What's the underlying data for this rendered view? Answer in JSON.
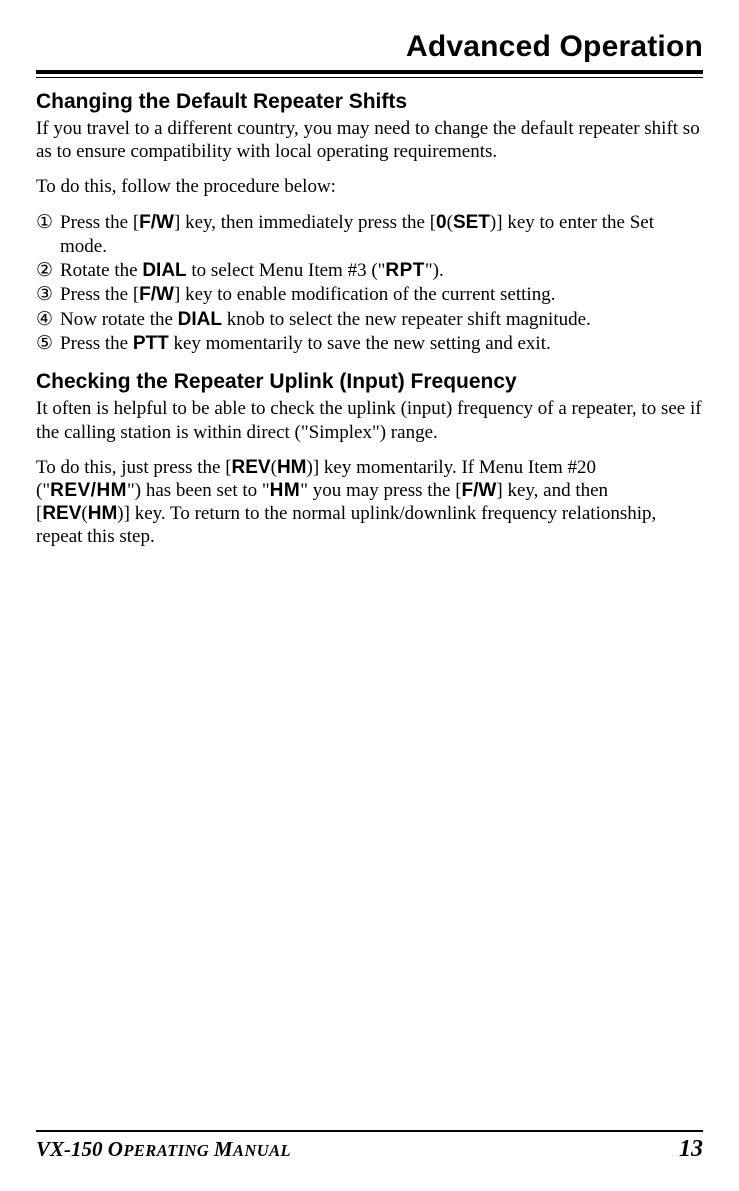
{
  "page_title": "Advanced Operation",
  "section1": {
    "heading": "Changing the Default Repeater Shifts",
    "intro": "If you travel to a different country, you may need to change the default repeater shift so as to ensure compatibility with local operating requirements.",
    "lead": "To do this, follow the procedure below:",
    "steps": {
      "n1": "①",
      "n2": "②",
      "n3": "③",
      "n4": "④",
      "n5": "⑤",
      "s1a": " Press the ",
      "s1_key1o": "[",
      "s1_key1": "F/W",
      "s1_key1c": "]",
      "s1b": " key, then immediately press the ",
      "s1_key2o": "[",
      "s1_key2a": "0",
      "s1_key2p": "(",
      "s1_key2b": "SET",
      "s1_key2q": ")",
      "s1_key2c": "]",
      "s1c": " key to enter the Set mode.",
      "s2a": " Rotate the ",
      "s2_dial": "DIAL",
      "s2b": " to select Menu Item #3 (\"",
      "s2_rpt": "RPT",
      "s2c": "\").",
      "s3a": " Press the ",
      "s3_keyo": "[",
      "s3_key": "F/W",
      "s3_keyc": "]",
      "s3b": " key to enable modification of the current setting.",
      "s4a": " Now rotate the ",
      "s4_dial": "DIAL",
      "s4b": " knob to select the new repeater shift magnitude.",
      "s5a": " Press the ",
      "s5_ptt": "PTT",
      "s5b": " key momentarily to save the new setting and exit."
    }
  },
  "section2": {
    "heading": "Checking the Repeater Uplink (Input) Frequency",
    "intro": "It often is helpful to be able to check the uplink (input) frequency of a repeater, to see if the calling station is within direct (\"Simplex\") range.",
    "p2": {
      "a": "To do this, just press the ",
      "k1o": "[",
      "k1a": "REV",
      "k1p": "(",
      "k1b": "HM",
      "k1q": ")",
      "k1c": "]",
      "b": " key momentarily. If Menu Item #20 (\"",
      "revhm": "REV/HM",
      "c": "\") has been set to \"",
      "hm": "HM",
      "d": "\" you may press the ",
      "k2o": "[",
      "k2": "F/W",
      "k2c": "]",
      "e": " key, and then ",
      "k3o": "[",
      "k3a": "REV",
      "k3p": "(",
      "k3b": "HM",
      "k3q": ")",
      "k3c": "]",
      "f": " key. To return to the normal uplink/downlink frequency relationship, repeat this step."
    }
  },
  "footer": {
    "model_prefix": "VX-150 ",
    "model_suffix_o": "O",
    "model_suffix_rest1": "PERATING ",
    "model_suffix_m": "M",
    "model_suffix_rest2": "ANUAL",
    "page_number": "13"
  }
}
